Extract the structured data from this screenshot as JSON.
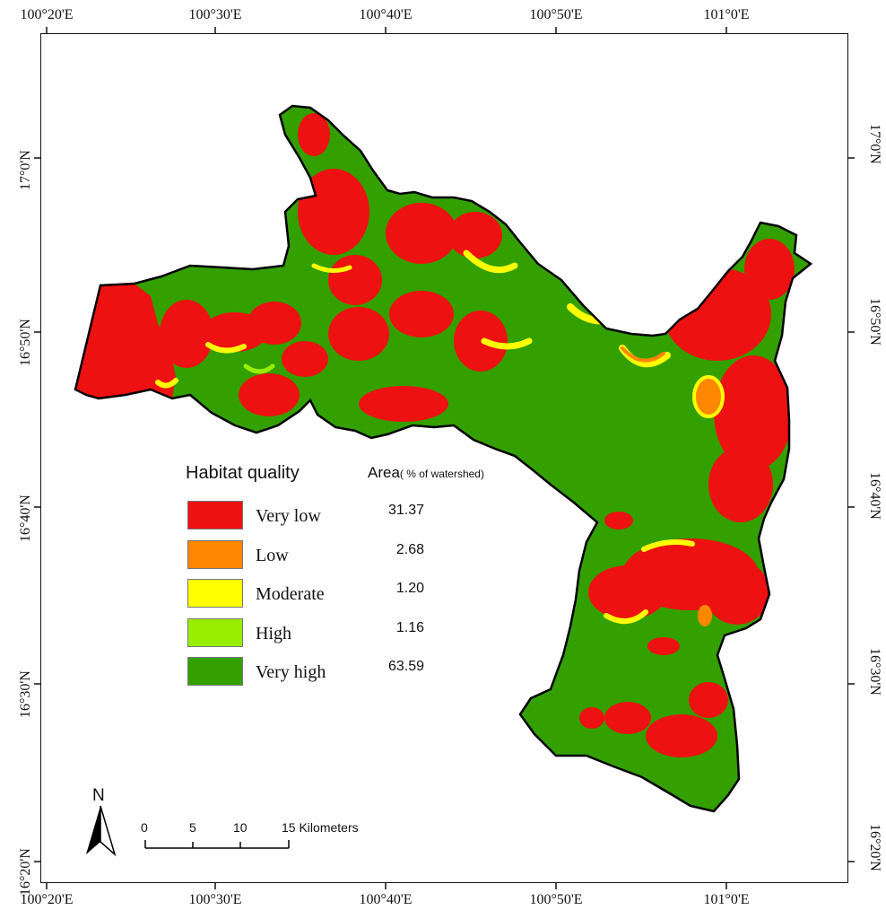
{
  "axes": {
    "top_ticks": [
      "100°20'E",
      "100°30'E",
      "100°40'E",
      "100°50'E",
      "101°0'E"
    ],
    "bottom_ticks": [
      "100°20'E",
      "100°30'E",
      "100°40'E",
      "100°50'E",
      "101°0'E"
    ],
    "left_ticks": [
      "17°0'N",
      "16°50'N",
      "16°40'N",
      "16°30'N",
      "16°20'N"
    ],
    "right_ticks": [
      "17°0'N",
      "16°50'N",
      "16°40'N",
      "16°30'N",
      "16°20'N"
    ]
  },
  "legend": {
    "title": "Habitat quality",
    "area_title": "Area",
    "area_unit": "( % of watershed)",
    "items": [
      {
        "label": "Very low",
        "value": "31.37",
        "color": "#ee1111"
      },
      {
        "label": "Low",
        "value": "2.68",
        "color": "#ff8800"
      },
      {
        "label": "Moderate",
        "value": "1.20",
        "color": "#ffff00"
      },
      {
        "label": "High",
        "value": "1.16",
        "color": "#99ee00"
      },
      {
        "label": "Very high",
        "value": "63.59",
        "color": "#33a000"
      }
    ]
  },
  "north_arrow": {
    "label": "N",
    "icon": "north-arrow-icon"
  },
  "scale_bar": {
    "ticks": [
      "0",
      "5",
      "10"
    ],
    "last_tick": "15",
    "unit": "Kilometers"
  },
  "colors": {
    "frame": "#111111",
    "watershed_outline": "#000000"
  }
}
